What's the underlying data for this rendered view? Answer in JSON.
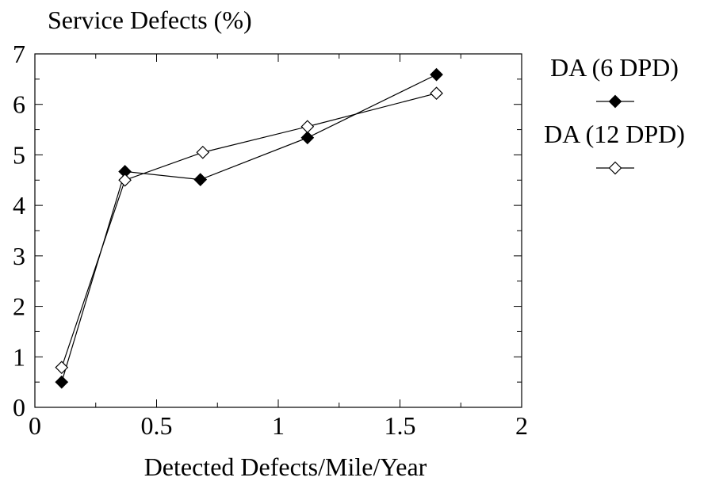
{
  "chart_data": {
    "type": "line",
    "title": "Service Defects (%)",
    "xlabel": "Detected Defects/Mile/Year",
    "ylabel": "",
    "xlim": [
      0,
      2
    ],
    "ylim": [
      0,
      7
    ],
    "x_ticks": [
      0,
      0.5,
      1,
      1.5,
      2
    ],
    "x_tick_labels": [
      "0",
      "0.5",
      "1",
      "1.5",
      "2"
    ],
    "y_ticks": [
      0,
      1,
      2,
      3,
      4,
      5,
      6,
      7
    ],
    "y_tick_labels": [
      "0",
      "1",
      "2",
      "3",
      "4",
      "5",
      "6",
      "7"
    ],
    "grid": false,
    "legend_position": "right",
    "series": [
      {
        "name": "DA (6 DPD)",
        "marker": "filled-diamond",
        "color": "#000000",
        "x": [
          0.11,
          0.37,
          0.68,
          1.12,
          1.65
        ],
        "y": [
          0.5,
          4.67,
          4.51,
          5.34,
          6.59
        ]
      },
      {
        "name": "DA (12 DPD)",
        "marker": "open-diamond",
        "color": "#000000",
        "x": [
          0.11,
          0.37,
          0.69,
          1.12,
          1.65
        ],
        "y": [
          0.79,
          4.5,
          5.05,
          5.56,
          6.22
        ]
      }
    ]
  }
}
